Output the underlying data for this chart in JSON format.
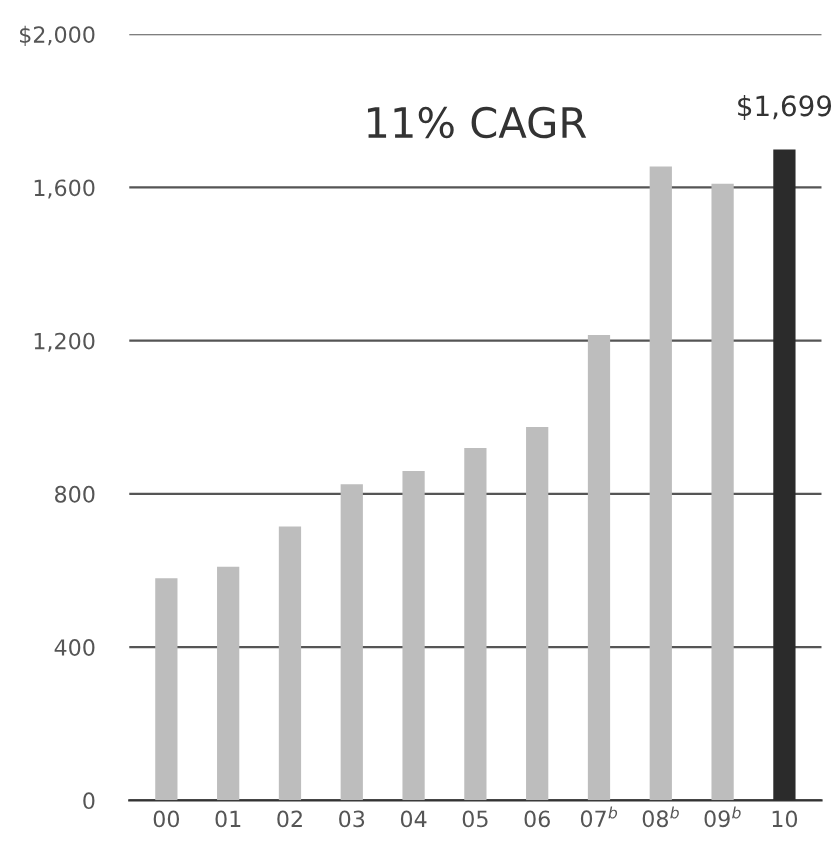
{
  "chart_data": {
    "type": "bar",
    "title": "11% CAGR",
    "categories": [
      "00",
      "01",
      "02",
      "03",
      "04",
      "05",
      "06",
      "07$^{b}$",
      "08$^{b}$",
      "09$^{b}$",
      "10"
    ],
    "values": [
      580,
      610,
      715,
      825,
      860,
      920,
      975,
      1215,
      1655,
      1610,
      1699
    ],
    "colors": [
      "#bdbdbd",
      "#bdbdbd",
      "#bdbdbd",
      "#bdbdbd",
      "#bdbdbd",
      "#bdbdbd",
      "#bdbdbd",
      "#bdbdbd",
      "#bdbdbd",
      "#bdbdbd",
      "#2b2b2b"
    ],
    "value_labels": [
      null,
      null,
      null,
      null,
      null,
      null,
      null,
      null,
      null,
      null,
      "$1,699"
    ],
    "ylim": [
      0,
      2000
    ],
    "yticks": [
      0,
      400,
      800,
      {
        "value": 1200,
        "label": "1,200"
      },
      {
        "value": 1600,
        "label": "1,600"
      },
      {
        "value": 2000,
        "label": "$2,000"
      }
    ],
    "grid": "y",
    "legend": false
  }
}
